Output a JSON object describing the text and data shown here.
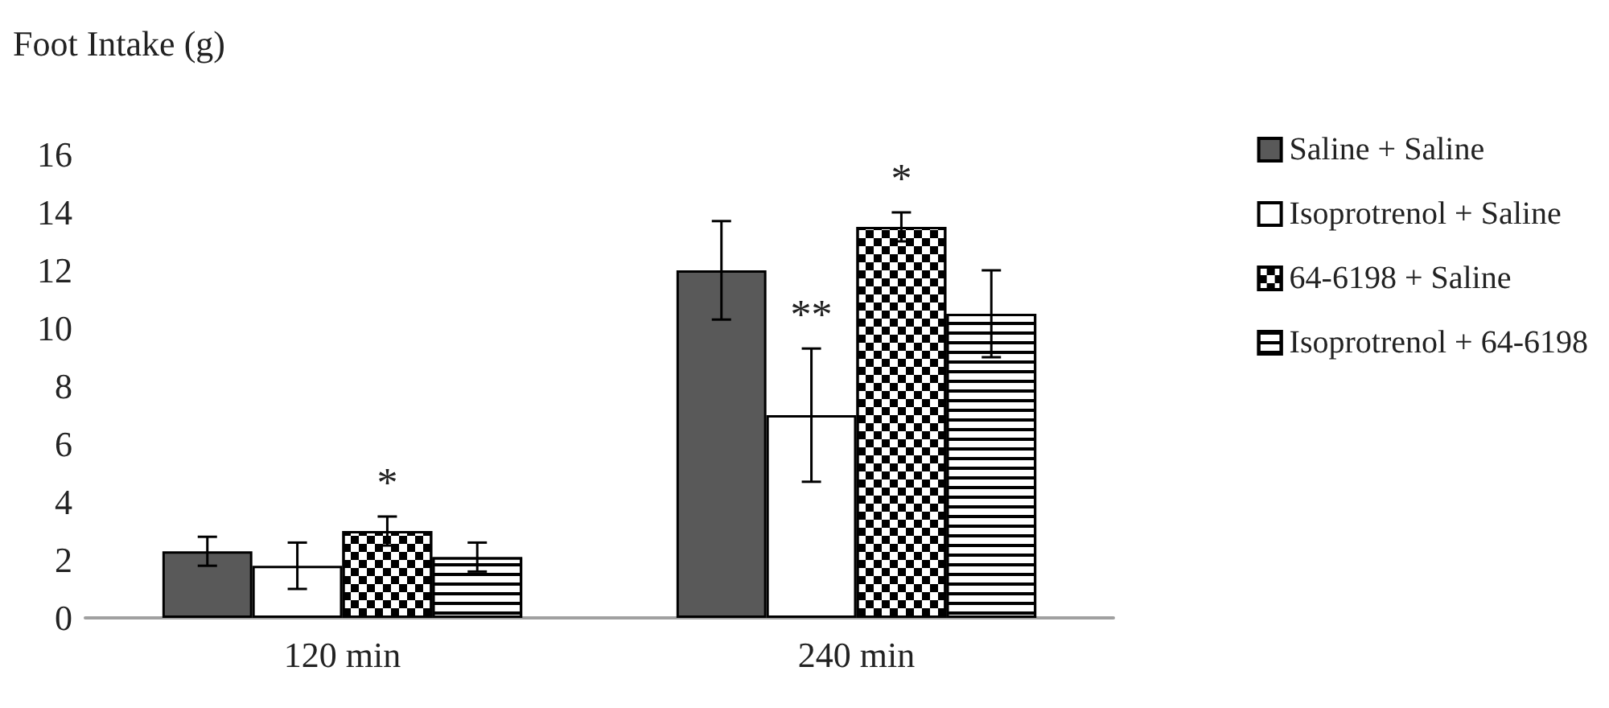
{
  "chart_data": {
    "type": "bar",
    "ylabel": "Foot Intake (g)",
    "categories": [
      "120 min",
      "240 min"
    ],
    "series": [
      {
        "name": "Saline + Saline",
        "color": "#595959",
        "values": [
          2.3,
          12.0
        ],
        "errors": [
          0.5,
          1.7
        ]
      },
      {
        "name": "Isoprotrenol + Saline",
        "color": "#ffffff",
        "values": [
          1.8,
          7.0
        ],
        "errors": [
          0.8,
          2.3
        ],
        "value_labels": [
          null,
          "**"
        ]
      },
      {
        "name": "64-6198 + Saline",
        "color": "#ffffff",
        "values": [
          3.0,
          13.5
        ],
        "errors": [
          0.5,
          0.5
        ],
        "value_labels": [
          "*",
          "*"
        ]
      },
      {
        "name": "Isoprotrenol + 64-6198",
        "color": "#ffffff",
        "values": [
          2.1,
          10.5
        ],
        "errors": [
          0.5,
          1.5
        ]
      }
    ],
    "ylim": [
      0,
      16
    ],
    "yticks": [
      0,
      2,
      4,
      6,
      8,
      10,
      12,
      14,
      16
    ],
    "grid": false,
    "legend": "right"
  }
}
